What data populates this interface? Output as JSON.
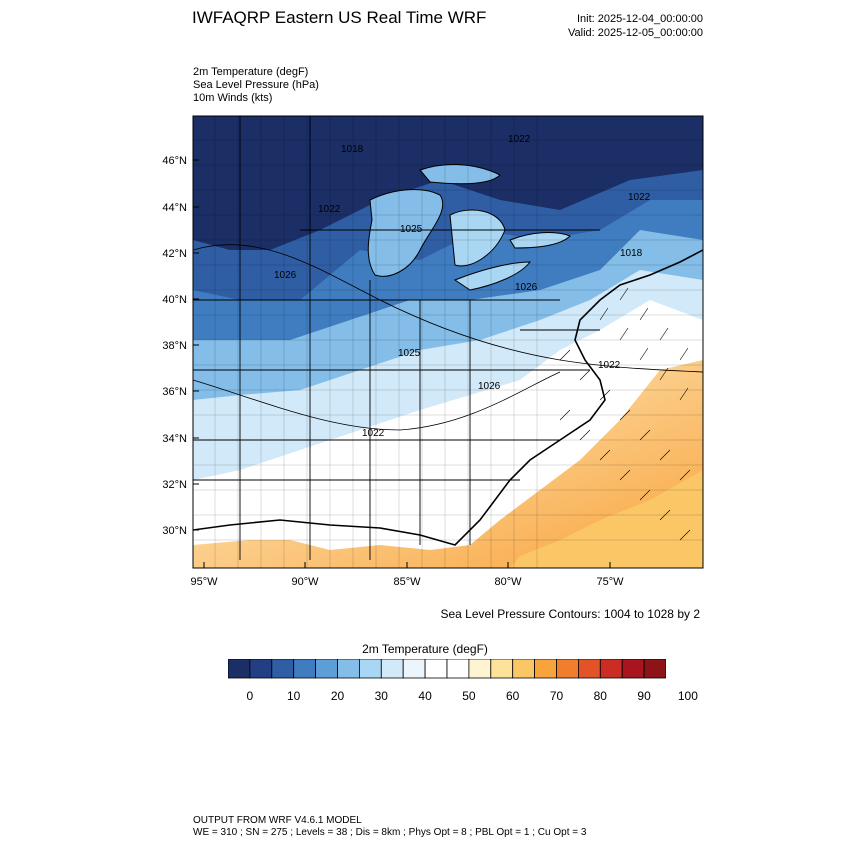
{
  "header": {
    "title": "IWFAQRP Eastern US Real Time WRF",
    "init": "Init: 2025-12-04_00:00:00",
    "valid": "Valid: 2025-12-05_00:00:00"
  },
  "fields": [
    "2m Temperature   (degF)",
    "Sea Level Pressure   (hPa)",
    "10m Winds   (kts)"
  ],
  "axes": {
    "lat_labels": [
      "46°N",
      "44°N",
      "42°N",
      "40°N",
      "38°N",
      "36°N",
      "34°N",
      "32°N",
      "30°N"
    ],
    "lon_labels": [
      "95°W",
      "90°W",
      "85°W",
      "80°W",
      "75°W"
    ]
  },
  "pressure_labels": [
    "1022",
    "1018",
    "1022",
    "1025",
    "1026",
    "1025",
    "1026",
    "1018",
    "1026",
    "1022",
    "1022",
    "1022"
  ],
  "contour_note": "Sea Level Pressure Contours: 1004 to 1028 by 2",
  "colorbar": {
    "title": "2m Temperature  (degF)",
    "labels": [
      "0",
      "10",
      "20",
      "30",
      "40",
      "50",
      "60",
      "70",
      "80",
      "90",
      "100"
    ],
    "colors": [
      "#1b2e66",
      "#233f83",
      "#2f5ea4",
      "#3f7cc0",
      "#5e9ed6",
      "#83bde8",
      "#a9d6f3",
      "#d1e9f8",
      "#ebf5fb",
      "#ffffff",
      "#ffffff",
      "#fff4d2",
      "#fde29a",
      "#fbc665",
      "#f8a33b",
      "#f17e2c",
      "#e25427",
      "#c92d24",
      "#a8151f",
      "#8c1419"
    ]
  },
  "footer": {
    "line1": "OUTPUT FROM WRF V4.6.1 MODEL",
    "line2": "WE = 310 ; SN = 275 ; Levels = 38 ; Dis = 8km ; Phys Opt = 8 ; PBL Opt = 1 ; Cu Opt = 3"
  }
}
